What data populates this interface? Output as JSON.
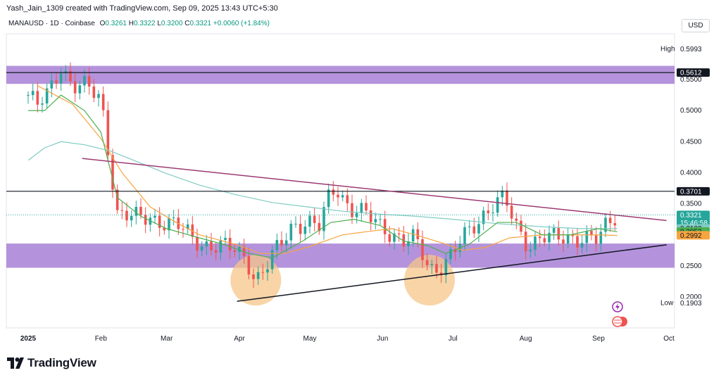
{
  "header": {
    "attribution": "Yash_Jain_1309 created with TradingView.com, Sep 09, 2025 13:43 UTC+5:30"
  },
  "legend": {
    "symbol": "MANAUSD · 1D · Coinbase",
    "o_label": "O",
    "o_value": "0.3261",
    "h_label": "H",
    "h_value": "0.3322",
    "l_label": "L",
    "l_value": "0.3200",
    "c_label": "C",
    "c_value": "0.3321",
    "change": "+0.0060 (+1.84%)"
  },
  "currency": "USD",
  "brand": {
    "name": "TradingView"
  },
  "colors": {
    "up": "#26a69a",
    "down": "#ef5350",
    "zone": "#9b6fd0",
    "ma_fast": "#4caf50",
    "ma_mid": "#f7a440",
    "ma_slow": "#80cbc4",
    "resistance_trend": "#9c3a72",
    "support_trend": "#131722",
    "circle": "#f6c589"
  },
  "chart_data": {
    "type": "candlestick",
    "symbol": "MANAUSD",
    "interval": "1D",
    "x_tick_labels": [
      "2025",
      "Feb",
      "Mar",
      "Apr",
      "May",
      "Jun",
      "Jul",
      "Aug",
      "Sep",
      "Oct"
    ],
    "y_tick_labels": [
      "0.5500",
      "0.5000",
      "0.4500",
      "0.4000",
      "0.3500",
      "0.2500",
      "0.2000"
    ],
    "ylim": [
      0.18,
      0.61
    ],
    "price_labels": {
      "high": {
        "label": "High",
        "value": "0.5993"
      },
      "low": {
        "label": "Low",
        "value": "0.1903"
      },
      "level_top": "0.5612",
      "level_mid": "0.3701",
      "last": "0.3321",
      "countdown": "15:46:58",
      "ma_slow_value": "0.3103",
      "ma_fast_value": "0.3053",
      "ma_mid_value": "0.2992"
    },
    "horizontal_levels": [
      0.5612,
      0.3701
    ],
    "zones": [
      {
        "from": 0.543,
        "to": 0.572
      },
      {
        "from": 0.247,
        "to": 0.286
      }
    ],
    "trendlines": [
      {
        "name": "resistance",
        "from": [
          "2025-01-24",
          0.423
        ],
        "to": [
          "2025-09-30",
          0.323
        ]
      },
      {
        "name": "support",
        "from": [
          "2025-03-31",
          0.193
        ],
        "to": [
          "2025-09-30",
          0.284
        ]
      }
    ],
    "highlights": [
      {
        "date": "2025-04-08",
        "price": 0.227
      },
      {
        "date": "2025-06-21",
        "price": 0.227
      }
    ],
    "closes_dates": [
      "2025-01-01",
      "2025-01-05",
      "2025-01-10",
      "2025-01-15",
      "2025-01-20",
      "2025-01-26",
      "2025-02-01",
      "2025-02-03",
      "2025-02-08",
      "2025-02-15",
      "2025-02-22",
      "2025-03-01",
      "2025-03-07",
      "2025-03-12",
      "2025-03-18",
      "2025-03-24",
      "2025-03-30",
      "2025-04-04",
      "2025-04-08",
      "2025-04-12",
      "2025-04-18",
      "2025-04-24",
      "2025-04-30",
      "2025-05-05",
      "2025-05-10",
      "2025-05-13",
      "2025-05-18",
      "2025-05-25",
      "2025-05-31",
      "2025-06-05",
      "2025-06-10",
      "2025-06-15",
      "2025-06-21",
      "2025-06-27",
      "2025-07-01",
      "2025-07-08",
      "2025-07-14",
      "2025-07-19",
      "2025-07-23",
      "2025-07-28",
      "2025-08-02",
      "2025-08-08",
      "2025-08-14",
      "2025-08-20",
      "2025-08-26",
      "2025-09-01",
      "2025-09-05",
      "2025-09-09"
    ],
    "closes": [
      0.525,
      0.505,
      0.53,
      0.575,
      0.54,
      0.535,
      0.52,
      0.47,
      0.335,
      0.325,
      0.33,
      0.32,
      0.31,
      0.295,
      0.285,
      0.28,
      0.275,
      0.265,
      0.228,
      0.245,
      0.28,
      0.32,
      0.32,
      0.31,
      0.37,
      0.375,
      0.345,
      0.33,
      0.315,
      0.305,
      0.29,
      0.29,
      0.245,
      0.255,
      0.27,
      0.305,
      0.335,
      0.355,
      0.355,
      0.31,
      0.285,
      0.3,
      0.29,
      0.295,
      0.3,
      0.29,
      0.315,
      0.332
    ],
    "ma_fast": [
      0.5,
      0.5,
      0.525,
      0.5,
      0.465,
      0.36,
      0.33,
      0.31,
      0.295,
      0.285,
      0.27,
      0.263,
      0.29,
      0.32,
      0.325,
      0.315,
      0.29,
      0.283,
      0.27,
      0.285,
      0.32,
      0.32,
      0.3,
      0.3,
      0.31,
      0.305
    ],
    "ma_mid": [
      0.54,
      0.51,
      0.455,
      0.4,
      0.345,
      0.32,
      0.3,
      0.285,
      0.27,
      0.27,
      0.28,
      0.3,
      0.305,
      0.31,
      0.3,
      0.285,
      0.275,
      0.28,
      0.295,
      0.3,
      0.3,
      0.3,
      0.299
    ],
    "ma_slow": [
      0.42,
      0.44,
      0.45,
      0.445,
      0.435,
      0.42,
      0.4,
      0.38,
      0.365,
      0.352,
      0.345,
      0.338,
      0.333,
      0.33,
      0.325,
      0.318,
      0.313,
      0.31,
      0.31
    ],
    "ma_fast_dates": [
      "2025-01-01",
      "2025-01-08",
      "2025-01-15",
      "2025-01-25",
      "2025-02-01",
      "2025-02-08",
      "2025-02-18",
      "2025-03-01",
      "2025-03-15",
      "2025-03-25",
      "2025-04-05",
      "2025-04-15",
      "2025-04-28",
      "2025-05-10",
      "2025-05-20",
      "2025-05-31",
      "2025-06-10",
      "2025-06-20",
      "2025-06-28",
      "2025-07-08",
      "2025-07-20",
      "2025-07-28",
      "2025-08-08",
      "2025-08-20",
      "2025-09-01",
      "2025-09-09"
    ],
    "ma_mid_dates": [
      "2025-01-05",
      "2025-01-20",
      "2025-02-01",
      "2025-02-10",
      "2025-02-22",
      "2025-03-05",
      "2025-03-15",
      "2025-03-30",
      "2025-04-10",
      "2025-04-20",
      "2025-04-30",
      "2025-05-15",
      "2025-05-25",
      "2025-06-05",
      "2025-06-15",
      "2025-06-28",
      "2025-07-05",
      "2025-07-15",
      "2025-07-25",
      "2025-08-08",
      "2025-08-20",
      "2025-09-01",
      "2025-09-09"
    ],
    "ma_slow_dates": [
      "2025-01-01",
      "2025-01-08",
      "2025-01-15",
      "2025-01-25",
      "2025-02-05",
      "2025-02-15",
      "2025-02-28",
      "2025-03-15",
      "2025-03-30",
      "2025-04-15",
      "2025-04-30",
      "2025-05-15",
      "2025-06-01",
      "2025-06-15",
      "2025-07-01",
      "2025-07-20",
      "2025-08-08",
      "2025-08-25",
      "2025-09-09"
    ]
  }
}
